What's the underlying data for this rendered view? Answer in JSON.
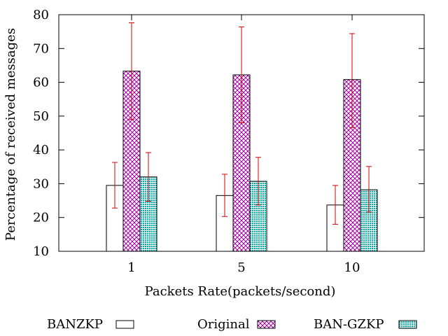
{
  "chart_data": {
    "type": "bar",
    "title": "",
    "xlabel": "Packets Rate(packets/second)",
    "ylabel": "Percentage of received messages",
    "categories": [
      "1",
      "5",
      "10"
    ],
    "ylim": [
      10,
      80
    ],
    "yticks": [
      10,
      20,
      30,
      40,
      50,
      60,
      70,
      80
    ],
    "grid": false,
    "legend_position": "bottom",
    "series": [
      {
        "name": "BANZKP",
        "values": [
          29.5,
          26.5,
          23.7
        ],
        "error_low": [
          22.8,
          20.3,
          18.0
        ],
        "error_high": [
          36.3,
          32.8,
          29.5
        ],
        "fill": "#ffffff",
        "pattern": "none"
      },
      {
        "name": "Original",
        "values": [
          63.3,
          62.2,
          60.8
        ],
        "error_low": [
          49.0,
          48.0,
          46.6
        ],
        "error_high": [
          77.6,
          76.4,
          74.4
        ],
        "fill": "#a000a0",
        "pattern": "crosshatch"
      },
      {
        "name": "BAN-GZKP",
        "values": [
          32.0,
          30.7,
          28.2
        ],
        "error_low": [
          24.8,
          23.7,
          21.6
        ],
        "error_high": [
          39.2,
          37.8,
          35.1
        ],
        "fill": "#00b0b0",
        "pattern": "dots"
      }
    ],
    "error_bar_color": "#d40000"
  }
}
